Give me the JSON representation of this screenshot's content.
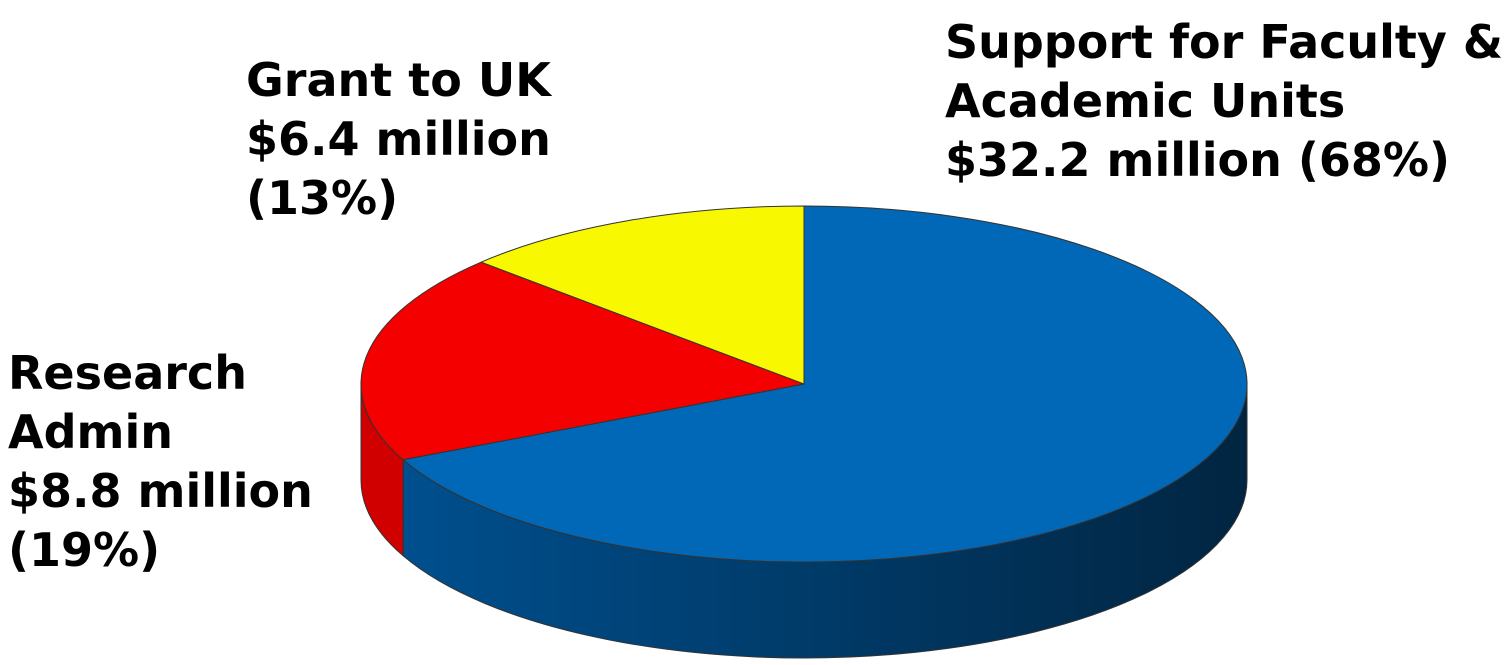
{
  "chart_data": {
    "type": "pie",
    "style": "3d",
    "slices": [
      {
        "label_lines": [
          "Support for Faculty &",
          "Academic Units",
          "$32.2 million (68%)"
        ],
        "amount": 32.2,
        "unit": "million",
        "percent": 68,
        "color": "#0068B6",
        "side_color": "#004F8E",
        "side_dark": "#012541"
      },
      {
        "label_lines": [
          "Research",
          "Admin",
          "$8.8 million",
          "(19%)"
        ],
        "amount": 8.8,
        "unit": "million",
        "percent": 19,
        "color": "#F40000",
        "side_color": "#D00000",
        "side_dark": "#9E0000"
      },
      {
        "label_lines": [
          "Grant to UK",
          "$6.4 million",
          "(13%)"
        ],
        "amount": 6.4,
        "unit": "million",
        "percent": 13,
        "color": "#F8F800",
        "side_color": "#C8C800",
        "side_dark": "#9A9A00"
      }
    ]
  }
}
